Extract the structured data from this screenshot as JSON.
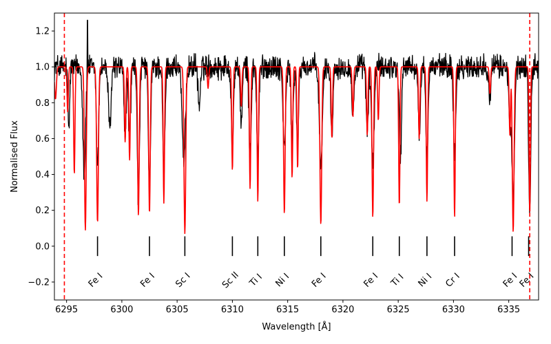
{
  "chart_data": {
    "type": "line",
    "xlabel": "Wavelength [Å]",
    "ylabel": "Normalised Flux",
    "xlim": [
      6293.9,
      6337.7
    ],
    "ylim": [
      -0.3,
      1.3
    ],
    "xticks": [
      6295,
      6300,
      6305,
      6310,
      6315,
      6320,
      6325,
      6330,
      6335
    ],
    "yticks": [
      -0.2,
      0.0,
      0.2,
      0.4,
      0.6,
      0.8,
      1.0,
      1.2
    ],
    "vlines": [
      6294.8,
      6336.9
    ],
    "series": [
      {
        "color": "#000000",
        "role": "observed",
        "continuum": 1.0,
        "noise": 0.055,
        "spike": {
          "x": 6296.9,
          "y": 1.26
        },
        "absorptions": [
          {
            "x": 6295.2,
            "depth": 0.35,
            "width": 0.08
          },
          {
            "x": 6296.6,
            "depth": 0.6,
            "width": 0.12
          },
          {
            "x": 6297.8,
            "depth": 0.55,
            "width": 0.1
          },
          {
            "x": 6298.9,
            "depth": 0.35,
            "width": 0.12
          },
          {
            "x": 6300.3,
            "depth": 0.38,
            "width": 0.1
          },
          {
            "x": 6300.7,
            "depth": 0.4,
            "width": 0.1
          },
          {
            "x": 6301.5,
            "depth": 0.75,
            "width": 0.1
          },
          {
            "x": 6302.5,
            "depth": 0.68,
            "width": 0.1
          },
          {
            "x": 6303.8,
            "depth": 0.6,
            "width": 0.1
          },
          {
            "x": 6305.6,
            "depth": 0.55,
            "width": 0.14
          },
          {
            "x": 6307.0,
            "depth": 0.22,
            "width": 0.1
          },
          {
            "x": 6310.0,
            "depth": 0.45,
            "width": 0.1
          },
          {
            "x": 6310.8,
            "depth": 0.3,
            "width": 0.1
          },
          {
            "x": 6311.6,
            "depth": 0.5,
            "width": 0.1
          },
          {
            "x": 6312.3,
            "depth": 0.5,
            "width": 0.1
          },
          {
            "x": 6314.7,
            "depth": 0.45,
            "width": 0.12
          },
          {
            "x": 6315.4,
            "depth": 0.4,
            "width": 0.1
          },
          {
            "x": 6315.9,
            "depth": 0.45,
            "width": 0.1
          },
          {
            "x": 6318.0,
            "depth": 0.55,
            "width": 0.14
          },
          {
            "x": 6319.0,
            "depth": 0.35,
            "width": 0.1
          },
          {
            "x": 6320.9,
            "depth": 0.28,
            "width": 0.1
          },
          {
            "x": 6322.2,
            "depth": 0.35,
            "width": 0.1
          },
          {
            "x": 6322.7,
            "depth": 0.55,
            "width": 0.12
          },
          {
            "x": 6325.2,
            "depth": 0.5,
            "width": 0.1
          },
          {
            "x": 6326.9,
            "depth": 0.38,
            "width": 0.1
          },
          {
            "x": 6327.6,
            "depth": 0.5,
            "width": 0.1
          },
          {
            "x": 6330.1,
            "depth": 0.5,
            "width": 0.1
          },
          {
            "x": 6333.3,
            "depth": 0.15,
            "width": 0.1
          },
          {
            "x": 6335.1,
            "depth": 0.3,
            "width": 0.1
          },
          {
            "x": 6335.4,
            "depth": 0.75,
            "width": 0.12
          },
          {
            "x": 6336.9,
            "depth": 0.8,
            "width": 0.1
          }
        ]
      },
      {
        "color": "#ff0000",
        "role": "model",
        "continuum": 1.0,
        "absorptions": [
          {
            "x": 6294.0,
            "depth": 0.18,
            "width": 0.08
          },
          {
            "x": 6295.1,
            "depth": 0.25,
            "width": 0.06
          },
          {
            "x": 6295.7,
            "depth": 0.6,
            "width": 0.06
          },
          {
            "x": 6296.7,
            "depth": 0.91,
            "width": 0.08
          },
          {
            "x": 6297.8,
            "depth": 0.87,
            "width": 0.08
          },
          {
            "x": 6300.3,
            "depth": 0.42,
            "width": 0.06
          },
          {
            "x": 6300.7,
            "depth": 0.52,
            "width": 0.06
          },
          {
            "x": 6301.5,
            "depth": 0.83,
            "width": 0.07
          },
          {
            "x": 6302.5,
            "depth": 0.82,
            "width": 0.07
          },
          {
            "x": 6303.8,
            "depth": 0.76,
            "width": 0.06
          },
          {
            "x": 6305.7,
            "depth": 0.93,
            "width": 0.08
          },
          {
            "x": 6307.8,
            "depth": 0.12,
            "width": 0.06
          },
          {
            "x": 6310.0,
            "depth": 0.58,
            "width": 0.06
          },
          {
            "x": 6310.8,
            "depth": 0.22,
            "width": 0.06
          },
          {
            "x": 6311.6,
            "depth": 0.68,
            "width": 0.06
          },
          {
            "x": 6312.3,
            "depth": 0.75,
            "width": 0.06
          },
          {
            "x": 6314.7,
            "depth": 0.82,
            "width": 0.07
          },
          {
            "x": 6315.4,
            "depth": 0.62,
            "width": 0.06
          },
          {
            "x": 6315.9,
            "depth": 0.57,
            "width": 0.06
          },
          {
            "x": 6318.0,
            "depth": 0.88,
            "width": 0.08
          },
          {
            "x": 6319.0,
            "depth": 0.4,
            "width": 0.06
          },
          {
            "x": 6320.9,
            "depth": 0.28,
            "width": 0.06
          },
          {
            "x": 6322.2,
            "depth": 0.38,
            "width": 0.06
          },
          {
            "x": 6322.7,
            "depth": 0.84,
            "width": 0.07
          },
          {
            "x": 6323.2,
            "depth": 0.3,
            "width": 0.06
          },
          {
            "x": 6325.1,
            "depth": 0.78,
            "width": 0.06
          },
          {
            "x": 6326.9,
            "depth": 0.4,
            "width": 0.06
          },
          {
            "x": 6327.6,
            "depth": 0.75,
            "width": 0.06
          },
          {
            "x": 6330.1,
            "depth": 0.84,
            "width": 0.06
          },
          {
            "x": 6333.3,
            "depth": 0.15,
            "width": 0.06
          },
          {
            "x": 6335.1,
            "depth": 0.38,
            "width": 0.06
          },
          {
            "x": 6335.4,
            "depth": 0.92,
            "width": 0.08
          },
          {
            "x": 6336.9,
            "depth": 0.82,
            "width": 0.06
          }
        ]
      }
    ],
    "line_identifications": [
      {
        "x": 6297.8,
        "label": "Fe I"
      },
      {
        "x": 6302.5,
        "label": "Fe I"
      },
      {
        "x": 6305.7,
        "label": "Sc I"
      },
      {
        "x": 6310.0,
        "label": "Sc II"
      },
      {
        "x": 6312.3,
        "label": "Ti I"
      },
      {
        "x": 6314.7,
        "label": "Ni I"
      },
      {
        "x": 6318.0,
        "label": "Fe I"
      },
      {
        "x": 6322.7,
        "label": "Fe I"
      },
      {
        "x": 6325.1,
        "label": "Ti I"
      },
      {
        "x": 6327.6,
        "label": "Ni I"
      },
      {
        "x": 6330.1,
        "label": "Cr I"
      },
      {
        "x": 6335.3,
        "label": "Fe I"
      },
      {
        "x": 6336.8,
        "label": "Fe I"
      }
    ]
  }
}
